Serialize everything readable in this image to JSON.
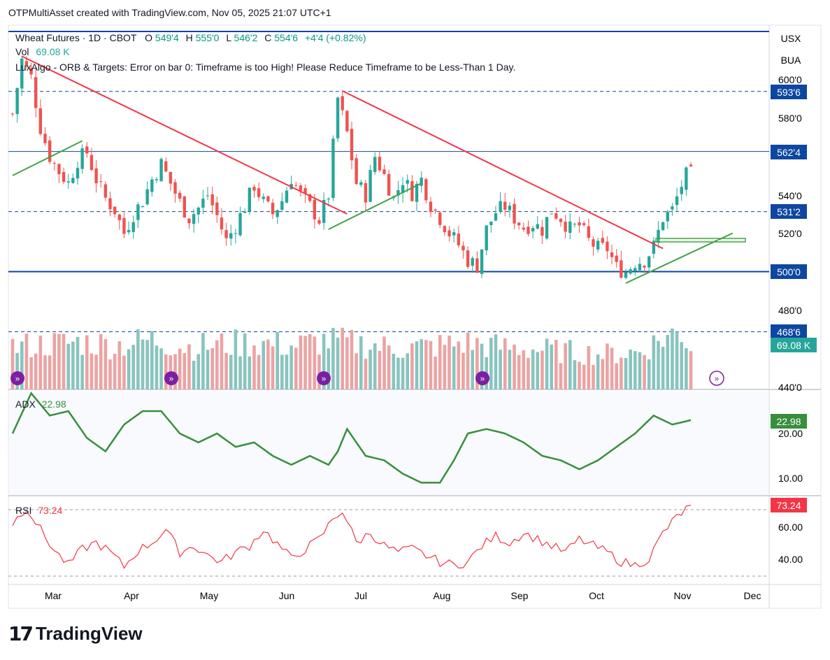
{
  "caption": "OTPMultiAsset created with TradingView.com, Nov 05, 2025 21:07 UTC+1",
  "brand": "TradingView",
  "colors": {
    "up": "#26a69a",
    "down": "#ef5350",
    "up_volume": "#89c4bf",
    "down_volume": "#eca3a3",
    "trend_red": "#f23645",
    "trend_green": "#43a047",
    "level_line": "#0d47a1",
    "adx_line": "#388e3c",
    "rsi_line": "#f23645"
  },
  "header": {
    "symbol": "Wheat Futures · 1D · CBOT",
    "open_label": "O",
    "open": "549'4",
    "high_label": "H",
    "high": "555'0",
    "low_label": "L",
    "low": "546'2",
    "close_label": "C",
    "close": "554'6",
    "change": "+4'4 (+0.82%)",
    "vol_label": "Vol",
    "vol": "69.08 K",
    "indicator_note": "LuxAlgo - ORB & Targets: Error on bar 0: Timeframe is too High! Please Reduce Timeframe to be Less-Than 1 Day."
  },
  "axis_top_labels": [
    "USX",
    "BUA"
  ],
  "price_ticks": [
    "600'0",
    "580'0",
    "540'0",
    "520'0",
    "480'0",
    "440'0"
  ],
  "price_badges": [
    {
      "label": "593'6",
      "value": 593.75,
      "style": "dark"
    },
    {
      "label": "562'4",
      "value": 562.5,
      "style": "dark"
    },
    {
      "label": "531'2",
      "value": 531.25,
      "style": "dark"
    },
    {
      "label": "500'0",
      "value": 500,
      "style": "dark"
    },
    {
      "label": "468'6",
      "value": 468.75,
      "style": "dark"
    },
    {
      "label": "69.08 K",
      "value": 463.5,
      "style": "teal"
    }
  ],
  "adx": {
    "label": "ADX",
    "value": "22.98",
    "ticks": [
      "20.00",
      "10.00"
    ]
  },
  "rsi": {
    "label": "RSI",
    "value": "73.24",
    "ticks": [
      "60.00",
      "40.00"
    ]
  },
  "months": [
    "Mar",
    "Apr",
    "May",
    "Jun",
    "Jul",
    "Aug",
    "Sep",
    "Oct",
    "Nov",
    "Dec"
  ],
  "chart_data": {
    "type": "candlestick",
    "instrument": "Wheat Futures · 1D · CBOT",
    "y_range": [
      438,
      616
    ],
    "horizontal_levels": [
      {
        "value": 593.75,
        "style": "dashed"
      },
      {
        "value": 562.5,
        "style": "solid"
      },
      {
        "value": 531.25,
        "style": "dashed"
      },
      {
        "value": 500,
        "style": "solid-thick"
      },
      {
        "value": 468.75,
        "style": "dashed"
      }
    ],
    "close_path": [
      [
        0,
        582
      ],
      [
        4,
        610
      ],
      [
        8,
        601
      ],
      [
        12,
        575
      ],
      [
        16,
        560
      ],
      [
        20,
        552
      ],
      [
        24,
        546
      ],
      [
        28,
        558
      ],
      [
        32,
        562
      ],
      [
        36,
        548
      ],
      [
        40,
        538
      ],
      [
        44,
        532
      ],
      [
        48,
        520
      ],
      [
        52,
        530
      ],
      [
        56,
        537
      ],
      [
        60,
        548
      ],
      [
        64,
        556
      ],
      [
        68,
        546
      ],
      [
        72,
        536
      ],
      [
        76,
        528
      ],
      [
        80,
        533
      ],
      [
        84,
        540
      ],
      [
        88,
        529
      ],
      [
        92,
        516
      ],
      [
        96,
        524
      ],
      [
        100,
        534
      ],
      [
        104,
        545
      ],
      [
        108,
        536
      ],
      [
        112,
        530
      ],
      [
        116,
        537
      ],
      [
        120,
        549
      ],
      [
        124,
        540
      ],
      [
        128,
        534
      ],
      [
        132,
        527
      ],
      [
        136,
        540
      ],
      [
        140,
        590
      ],
      [
        144,
        572
      ],
      [
        148,
        546
      ],
      [
        152,
        540
      ],
      [
        156,
        560
      ],
      [
        160,
        550
      ],
      [
        164,
        538
      ],
      [
        168,
        548
      ],
      [
        172,
        541
      ],
      [
        176,
        548
      ],
      [
        180,
        535
      ],
      [
        184,
        528
      ],
      [
        188,
        520
      ],
      [
        192,
        514
      ],
      [
        196,
        506
      ],
      [
        200,
        503
      ],
      [
        204,
        522
      ],
      [
        208,
        531
      ],
      [
        212,
        534
      ],
      [
        216,
        528
      ],
      [
        220,
        523
      ],
      [
        224,
        525
      ],
      [
        228,
        522
      ],
      [
        232,
        532
      ],
      [
        236,
        528
      ],
      [
        240,
        522
      ],
      [
        244,
        524
      ],
      [
        248,
        516
      ],
      [
        252,
        512
      ],
      [
        256,
        512
      ],
      [
        260,
        502
      ],
      [
        264,
        500
      ],
      [
        268,
        505
      ],
      [
        272,
        506
      ],
      [
        276,
        513
      ],
      [
        280,
        528
      ],
      [
        284,
        532
      ],
      [
        288,
        545
      ],
      [
        292,
        554.75
      ]
    ],
    "volume_profile": [
      [
        0,
        70
      ],
      [
        15,
        75
      ],
      [
        30,
        78
      ],
      [
        45,
        73
      ],
      [
        60,
        82
      ],
      [
        75,
        70
      ],
      [
        90,
        74
      ],
      [
        105,
        77
      ],
      [
        120,
        72
      ],
      [
        135,
        80
      ],
      [
        150,
        75
      ],
      [
        165,
        68
      ],
      [
        180,
        71
      ],
      [
        195,
        77
      ],
      [
        210,
        70
      ],
      [
        225,
        66
      ],
      [
        240,
        62
      ],
      [
        255,
        58
      ],
      [
        270,
        62
      ],
      [
        280,
        85
      ],
      [
        288,
        95
      ],
      [
        292,
        69.08
      ]
    ],
    "trendlines": [
      {
        "color": "red",
        "from": [
          4,
          612
        ],
        "to": [
          144,
          530
        ]
      },
      {
        "color": "red",
        "from": [
          142,
          594
        ],
        "to": [
          280,
          512
        ]
      },
      {
        "color": "green",
        "from": [
          0,
          550
        ],
        "to": [
          30,
          568
        ]
      },
      {
        "color": "green",
        "from": [
          136,
          522
        ],
        "to": [
          176,
          546
        ]
      },
      {
        "color": "green",
        "from": [
          264,
          494
        ],
        "to": [
          310,
          520
        ]
      }
    ],
    "adx_path": [
      [
        0,
        20
      ],
      [
        8,
        29
      ],
      [
        16,
        24
      ],
      [
        24,
        25
      ],
      [
        32,
        19
      ],
      [
        40,
        16
      ],
      [
        48,
        22
      ],
      [
        56,
        25
      ],
      [
        64,
        25
      ],
      [
        72,
        20
      ],
      [
        80,
        18
      ],
      [
        88,
        20
      ],
      [
        96,
        17
      ],
      [
        104,
        18
      ],
      [
        112,
        15
      ],
      [
        120,
        13
      ],
      [
        128,
        15
      ],
      [
        136,
        13
      ],
      [
        140,
        16
      ],
      [
        144,
        21
      ],
      [
        152,
        15
      ],
      [
        160,
        14
      ],
      [
        168,
        11
      ],
      [
        176,
        9
      ],
      [
        184,
        9
      ],
      [
        190,
        14
      ],
      [
        196,
        20
      ],
      [
        204,
        21
      ],
      [
        212,
        20
      ],
      [
        220,
        18
      ],
      [
        228,
        15
      ],
      [
        236,
        14
      ],
      [
        244,
        12
      ],
      [
        252,
        14
      ],
      [
        260,
        17
      ],
      [
        268,
        20
      ],
      [
        276,
        24
      ],
      [
        284,
        22
      ],
      [
        292,
        22.98
      ]
    ],
    "rsi_path": [
      [
        0,
        62
      ],
      [
        6,
        72
      ],
      [
        12,
        58
      ],
      [
        18,
        45
      ],
      [
        24,
        36
      ],
      [
        30,
        46
      ],
      [
        36,
        50
      ],
      [
        42,
        44
      ],
      [
        48,
        35
      ],
      [
        54,
        45
      ],
      [
        60,
        50
      ],
      [
        66,
        58
      ],
      [
        72,
        44
      ],
      [
        78,
        48
      ],
      [
        84,
        42
      ],
      [
        90,
        38
      ],
      [
        96,
        44
      ],
      [
        102,
        48
      ],
      [
        108,
        58
      ],
      [
        114,
        49
      ],
      [
        120,
        40
      ],
      [
        126,
        46
      ],
      [
        132,
        52
      ],
      [
        138,
        65
      ],
      [
        142,
        70
      ],
      [
        148,
        50
      ],
      [
        154,
        56
      ],
      [
        160,
        48
      ],
      [
        166,
        44
      ],
      [
        172,
        46
      ],
      [
        178,
        42
      ],
      [
        184,
        38
      ],
      [
        190,
        36
      ],
      [
        196,
        38
      ],
      [
        202,
        48
      ],
      [
        208,
        54
      ],
      [
        214,
        50
      ],
      [
        220,
        56
      ],
      [
        226,
        52
      ],
      [
        232,
        48
      ],
      [
        238,
        44
      ],
      [
        244,
        52
      ],
      [
        250,
        48
      ],
      [
        256,
        44
      ],
      [
        262,
        38
      ],
      [
        268,
        36
      ],
      [
        274,
        40
      ],
      [
        280,
        56
      ],
      [
        286,
        66
      ],
      [
        292,
        73.24
      ]
    ]
  }
}
